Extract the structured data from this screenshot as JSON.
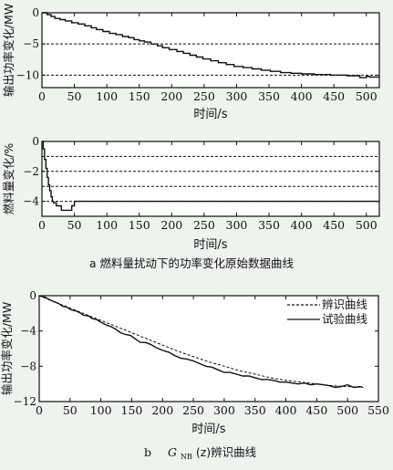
{
  "figure": {
    "caption_a": "a   燃料量扰动下的功率变化原始数据曲线",
    "caption_b_prefix": "b",
    "caption_b_g": "G",
    "caption_b_sub": "NB",
    "caption_b_rest": "(z)辨识曲线"
  },
  "chart_data": [
    {
      "id": "a1",
      "type": "line",
      "xlabel": "时间/s",
      "ylabel": "输出功率变化/MW",
      "xlim": [
        0,
        520
      ],
      "ylim": [
        -12,
        0
      ],
      "xticks": [
        0,
        50,
        100,
        150,
        200,
        250,
        300,
        350,
        400,
        450,
        500
      ],
      "yticks": [
        0,
        -5,
        -10
      ],
      "grid_y": [
        -5,
        -10
      ],
      "series": [
        {
          "style": "solid",
          "x": [
            0,
            8,
            8,
            14,
            14,
            20,
            20,
            28,
            28,
            36,
            36,
            46,
            46,
            56,
            56,
            66,
            66,
            76,
            76,
            84,
            84,
            94,
            94,
            104,
            104,
            114,
            114,
            124,
            124,
            134,
            134,
            142,
            142,
            150,
            150,
            158,
            158,
            168,
            168,
            178,
            178,
            186,
            186,
            196,
            196,
            208,
            208,
            218,
            218,
            228,
            228,
            238,
            238,
            248,
            248,
            260,
            260,
            272,
            272,
            284,
            284,
            296,
            296,
            310,
            310,
            324,
            324,
            338,
            338,
            352,
            352,
            368,
            368,
            384,
            384,
            400,
            400,
            420,
            420,
            445,
            445,
            470,
            470,
            490,
            490,
            500,
            500,
            505,
            505,
            520
          ],
          "y": [
            0,
            0,
            -0.3,
            -0.3,
            -0.6,
            -0.6,
            -0.9,
            -0.9,
            -1.1,
            -1.1,
            -1.3,
            -1.3,
            -1.6,
            -1.6,
            -1.8,
            -1.8,
            -2.1,
            -2.1,
            -2.4,
            -2.4,
            -2.7,
            -2.7,
            -3.0,
            -3.0,
            -3.3,
            -3.3,
            -3.5,
            -3.5,
            -3.8,
            -3.8,
            -4.0,
            -4.0,
            -4.3,
            -4.3,
            -4.5,
            -4.5,
            -4.7,
            -4.7,
            -5.0,
            -5.0,
            -5.3,
            -5.3,
            -5.6,
            -5.6,
            -5.9,
            -5.9,
            -6.2,
            -6.2,
            -6.5,
            -6.5,
            -6.8,
            -6.8,
            -7.1,
            -7.1,
            -7.4,
            -7.4,
            -7.7,
            -7.7,
            -8.0,
            -8.0,
            -8.3,
            -8.3,
            -8.6,
            -8.6,
            -8.8,
            -8.8,
            -9.0,
            -9.0,
            -9.2,
            -9.2,
            -9.4,
            -9.4,
            -9.6,
            -9.6,
            -9.7,
            -9.7,
            -9.8,
            -9.8,
            -9.9,
            -9.9,
            -10.0,
            -10.0,
            -10.1,
            -10.1,
            -10.4,
            -10.4,
            -10.2,
            -10.2,
            -10.3,
            -10.3
          ]
        }
      ]
    },
    {
      "id": "a2",
      "type": "line",
      "xlabel": "时间/s",
      "ylabel": "燃料量变化/%",
      "xlim": [
        0,
        520
      ],
      "ylim": [
        -5,
        0
      ],
      "xticks": [
        0,
        50,
        100,
        150,
        200,
        250,
        300,
        350,
        400,
        450,
        500
      ],
      "yticks": [
        0,
        -2,
        -4
      ],
      "grid_y": [
        -1,
        -2,
        -3,
        -4
      ],
      "series": [
        {
          "style": "solid",
          "x": [
            0,
            2,
            2,
            4,
            4,
            6,
            6,
            8,
            8,
            10,
            10,
            12,
            12,
            14,
            14,
            16,
            16,
            18,
            18,
            22,
            22,
            30,
            30,
            46,
            46,
            50,
            50,
            54,
            54,
            520
          ],
          "y": [
            0,
            0,
            -0.5,
            -0.5,
            -1.2,
            -1.2,
            -1.8,
            -1.8,
            -2.4,
            -2.4,
            -2.9,
            -2.9,
            -3.3,
            -3.3,
            -3.7,
            -3.7,
            -4.0,
            -4.0,
            -4.1,
            -4.1,
            -4.3,
            -4.3,
            -4.6,
            -4.6,
            -4.3,
            -4.3,
            -4.0,
            -4.0,
            -4.0,
            -4.0
          ]
        }
      ]
    },
    {
      "id": "b",
      "type": "line",
      "xlabel": "时间/s",
      "ylabel": "输出功率变化/MW",
      "xlim": [
        0,
        550
      ],
      "ylim": [
        -12,
        0
      ],
      "xticks": [
        0,
        50,
        100,
        150,
        200,
        250,
        300,
        350,
        400,
        450,
        500,
        550
      ],
      "yticks": [
        0,
        -4,
        -8,
        -12
      ],
      "legend_position": "top-right",
      "series": [
        {
          "name": "辨识曲线",
          "style": "dashed",
          "x": [
            0,
            25,
            50,
            75,
            100,
            125,
            150,
            175,
            200,
            225,
            250,
            275,
            300,
            325,
            350,
            375,
            400,
            425,
            450,
            475,
            500,
            525
          ],
          "y": [
            0,
            -0.7,
            -1.4,
            -2.1,
            -2.8,
            -3.5,
            -4.2,
            -4.9,
            -5.6,
            -6.3,
            -6.9,
            -7.5,
            -8.0,
            -8.5,
            -8.9,
            -9.3,
            -9.6,
            -9.8,
            -10.0,
            -10.2,
            -10.3,
            -10.4
          ]
        },
        {
          "name": "试验曲线",
          "style": "solid",
          "x": [
            0,
            10,
            18,
            25,
            32,
            38,
            45,
            52,
            58,
            65,
            72,
            80,
            86,
            93,
            100,
            108,
            116,
            124,
            132,
            140,
            148,
            156,
            164,
            172,
            180,
            190,
            200,
            210,
            220,
            230,
            240,
            250,
            260,
            270,
            280,
            290,
            300,
            310,
            320,
            330,
            340,
            350,
            360,
            370,
            380,
            390,
            400,
            410,
            420,
            430,
            440,
            450,
            460,
            470,
            480,
            490,
            500,
            510,
            520,
            525
          ],
          "y": [
            0,
            -0.2,
            -0.5,
            -0.7,
            -0.9,
            -1.2,
            -1.3,
            -1.6,
            -1.7,
            -1.9,
            -2.2,
            -2.3,
            -2.6,
            -2.7,
            -3.0,
            -3.3,
            -3.5,
            -3.8,
            -4.2,
            -4.4,
            -4.5,
            -4.9,
            -5.3,
            -5.3,
            -5.5,
            -5.9,
            -6.2,
            -6.4,
            -6.8,
            -7.1,
            -7.2,
            -7.4,
            -7.7,
            -8.0,
            -8.1,
            -8.4,
            -8.7,
            -8.7,
            -8.9,
            -9.1,
            -9.1,
            -9.3,
            -9.5,
            -9.5,
            -9.6,
            -9.8,
            -9.8,
            -9.9,
            -10.0,
            -9.9,
            -10.1,
            -10.0,
            -10.1,
            -10.2,
            -10.4,
            -10.3,
            -10.1,
            -10.4,
            -10.3,
            -10.4
          ]
        }
      ]
    }
  ]
}
